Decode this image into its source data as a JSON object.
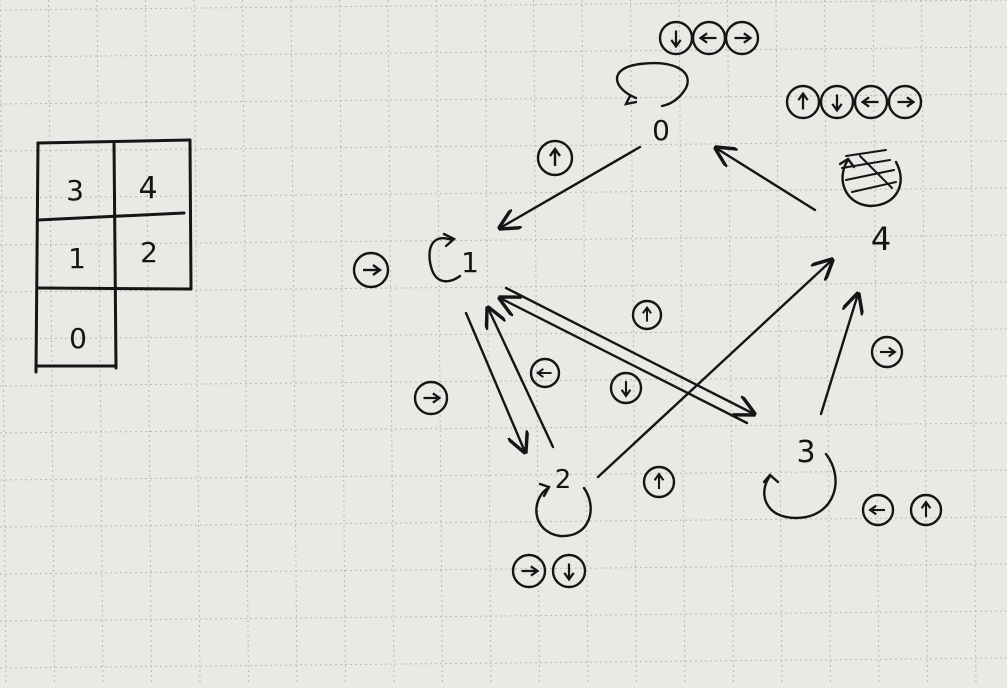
{
  "colors": {
    "paper": "#e9e9e6",
    "grid": "#b9b9b6",
    "ink": "#151515"
  },
  "grid_table": {
    "cells": [
      {
        "label": "3"
      },
      {
        "label": "4"
      },
      {
        "label": "1"
      },
      {
        "label": "2"
      },
      {
        "label": "0"
      }
    ]
  },
  "diagram": {
    "nodes": {
      "n0": {
        "label": "0"
      },
      "n1": {
        "label": "1"
      },
      "n2": {
        "label": "2"
      },
      "n3": {
        "label": "3"
      },
      "n4": {
        "label": "4"
      }
    },
    "actions": {
      "n0_self": [
        "down",
        "left",
        "right"
      ],
      "n4_self": [
        "up",
        "down",
        "left",
        "right"
      ],
      "n1_self": [
        "right"
      ],
      "n2_self": [
        "right",
        "down"
      ],
      "n3_self": [
        "left",
        "up"
      ],
      "e_0_1": [
        "up"
      ],
      "e_1_2": [
        "right"
      ],
      "e_2_1": [
        "left"
      ],
      "e_1_3": [
        "down"
      ],
      "e_3_1": [
        "up"
      ],
      "e_2_4": [
        "up"
      ],
      "e_3_4": [
        "right"
      ]
    },
    "edges": [
      {
        "id": "edge-0-to-1",
        "from": "0",
        "to": "1"
      },
      {
        "id": "edge-1-to-2",
        "from": "1",
        "to": "2"
      },
      {
        "id": "edge-2-to-1",
        "from": "2",
        "to": "1"
      },
      {
        "id": "edge-1-to-3",
        "from": "1",
        "to": "3"
      },
      {
        "id": "edge-3-to-1",
        "from": "3",
        "to": "1"
      },
      {
        "id": "edge-2-to-4",
        "from": "2",
        "to": "4"
      },
      {
        "id": "edge-3-to-4",
        "from": "3",
        "to": "4"
      },
      {
        "id": "edge-4-to-0",
        "from": "4",
        "to": "0"
      }
    ]
  }
}
